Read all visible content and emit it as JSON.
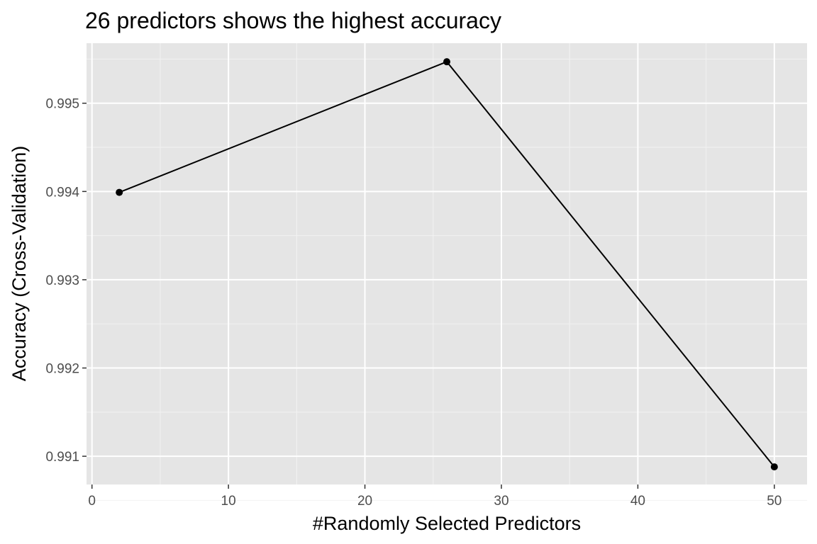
{
  "chart_data": {
    "type": "line",
    "title": "26 predictors shows the highest accuracy",
    "xlabel": "#Randomly Selected Predictors",
    "ylabel": "Accuracy (Cross-Validation)",
    "x": [
      2,
      26,
      50
    ],
    "series": [
      {
        "values": [
          0.99399,
          0.99547,
          0.99088
        ]
      }
    ],
    "xlim": [
      -0.4,
      52.4
    ],
    "ylim": [
      0.99068,
      0.99568
    ],
    "x_ticks": [
      0,
      10,
      20,
      30,
      40,
      50
    ],
    "x_tick_labels": [
      "0",
      "10",
      "20",
      "30",
      "40",
      "50"
    ],
    "y_ticks": [
      0.991,
      0.992,
      0.993,
      0.994,
      0.995
    ],
    "y_tick_labels": [
      "0.991",
      "0.992",
      "0.993",
      "0.994",
      "0.995"
    ],
    "x_minor_ticks": [
      5,
      15,
      25,
      35,
      45
    ],
    "y_minor_ticks": [
      0.9905,
      0.9915,
      0.9925,
      0.9935,
      0.9945,
      0.9955
    ],
    "grid": true,
    "legend": "none",
    "colors": {
      "panel_background": "#e5e5e5",
      "grid_major": "#ffffff",
      "grid_minor": "#f2f2f2",
      "line": "#000000",
      "point": "#000000",
      "tick": "#333333"
    }
  }
}
